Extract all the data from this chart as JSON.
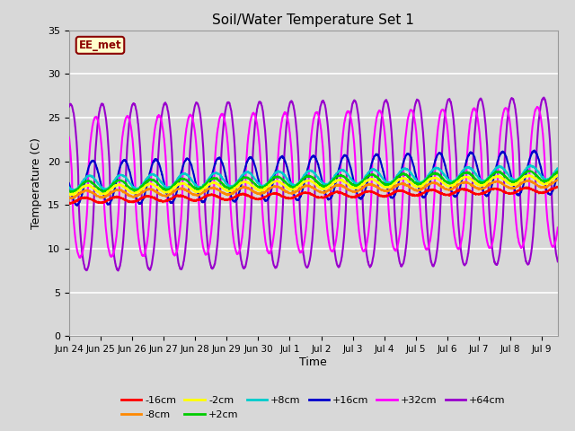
{
  "title": "Soil/Water Temperature Set 1",
  "xlabel": "Time",
  "ylabel": "Temperature (C)",
  "ylim": [
    0,
    35
  ],
  "yticks": [
    0,
    5,
    10,
    15,
    20,
    25,
    30,
    35
  ],
  "background_color": "#d8d8d8",
  "plot_bg_color": "#d8d8d8",
  "grid_color": "#ffffff",
  "annotation_label": "EE_met",
  "annotation_bg": "#ffffcc",
  "annotation_border": "#8b0000",
  "series": [
    {
      "label": "-16cm",
      "color": "#ff0000",
      "base": 15.5,
      "trend": 0.08,
      "amp": 0.3,
      "phase": 0.0
    },
    {
      "label": "-8cm",
      "color": "#ff8800",
      "base": 16.2,
      "trend": 0.08,
      "amp": 0.4,
      "phase": 0.05
    },
    {
      "label": "-2cm",
      "color": "#ffff00",
      "base": 16.7,
      "trend": 0.08,
      "amp": 0.5,
      "phase": 0.08
    },
    {
      "label": "+2cm",
      "color": "#00cc00",
      "base": 17.1,
      "trend": 0.08,
      "amp": 0.6,
      "phase": 0.1
    },
    {
      "label": "+8cm",
      "color": "#00cccc",
      "base": 17.5,
      "trend": 0.08,
      "amp": 0.8,
      "phase": 0.15
    },
    {
      "label": "+16cm",
      "color": "#0000cc",
      "base": 17.5,
      "trend": 0.08,
      "amp": 2.5,
      "phase": 0.25
    },
    {
      "label": "+32cm",
      "color": "#ff00ff",
      "base": 17.0,
      "trend": 0.08,
      "amp": 8.0,
      "phase": 0.35
    },
    {
      "label": "+64cm",
      "color": "#9900cc",
      "base": 17.0,
      "trend": 0.05,
      "amp": 9.5,
      "phase": 0.55
    }
  ],
  "x_tick_labels": [
    "Jun 24",
    "Jun 25",
    "Jun 26",
    "Jun 27",
    "Jun 28",
    "Jun 29",
    "Jun 30",
    "Jul 1",
    "Jul 2",
    "Jul 3",
    "Jul 4",
    "Jul 5",
    "Jul 6",
    "Jul 7",
    "Jul 8",
    "Jul 9"
  ]
}
